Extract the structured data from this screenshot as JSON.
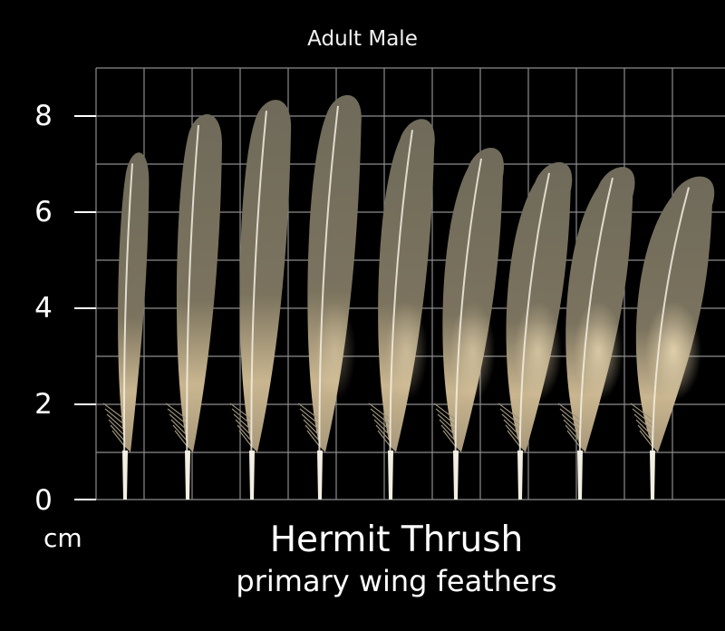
{
  "header": {
    "title": "Adult Male"
  },
  "axis": {
    "unit": "cm",
    "ticks": [
      "0",
      "2",
      "4",
      "6",
      "8"
    ]
  },
  "caption": {
    "title": "Hermit Thrush",
    "subtitle": "primary wing feathers"
  },
  "colors": {
    "background": "#000000",
    "grid": "#8c8c8c",
    "feather_vane": "#706a58",
    "feather_light": "#d8c6a0",
    "shaft": "#f3eee2"
  },
  "feathers": [
    {
      "label": "",
      "length_cm": 7.4
    },
    {
      "label": "",
      "length_cm": 8.2
    },
    {
      "label": "",
      "length_cm": 8.5
    },
    {
      "label": "",
      "length_cm": 8.6
    },
    {
      "label": "",
      "length_cm": 8.1
    },
    {
      "label": "",
      "length_cm": 7.5
    },
    {
      "label": "",
      "length_cm": 7.2
    },
    {
      "label": "",
      "length_cm": 7.1
    },
    {
      "label": "",
      "length_cm": 6.9
    }
  ]
}
